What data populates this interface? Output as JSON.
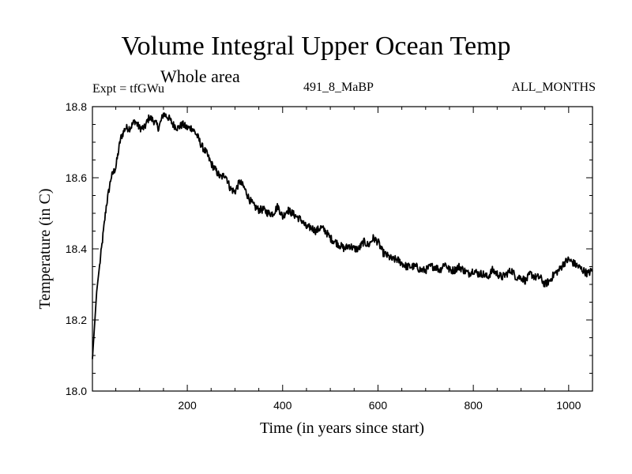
{
  "chart_data": {
    "type": "line",
    "title": "Volume Integral Upper Ocean Temp",
    "subtitle": "Whole area",
    "experiment_label": "Expt = tfGWu",
    "run_label": "491_8_MaBP",
    "months_label": "ALL_MONTHS",
    "xlabel": "Time (in years since start)",
    "ylabel": "Temperature (in C)",
    "xlim": [
      1,
      1050
    ],
    "ylim": [
      18.0,
      18.8
    ],
    "x_ticks": [
      200,
      400,
      600,
      800,
      1000
    ],
    "x_tick_labels": [
      "200",
      "400",
      "600",
      "800",
      "1000"
    ],
    "y_ticks": [
      18.0,
      18.2,
      18.4,
      18.6,
      18.8
    ],
    "y_tick_labels": [
      "18.0",
      "18.2",
      "18.4",
      "18.6",
      "18.8"
    ],
    "series": [
      {
        "name": "tfGWu",
        "x": [
          1,
          10,
          20,
          30,
          40,
          50,
          60,
          70,
          80,
          90,
          100,
          110,
          120,
          130,
          140,
          150,
          160,
          170,
          180,
          190,
          200,
          210,
          220,
          230,
          240,
          250,
          260,
          270,
          280,
          290,
          300,
          310,
          320,
          330,
          340,
          350,
          360,
          370,
          380,
          390,
          400,
          410,
          420,
          430,
          440,
          450,
          460,
          470,
          480,
          490,
          500,
          510,
          520,
          530,
          540,
          550,
          560,
          570,
          580,
          590,
          600,
          610,
          620,
          630,
          640,
          650,
          660,
          670,
          680,
          690,
          700,
          710,
          720,
          730,
          740,
          750,
          760,
          770,
          780,
          790,
          800,
          810,
          820,
          830,
          840,
          850,
          860,
          870,
          880,
          890,
          900,
          910,
          920,
          930,
          940,
          950,
          960,
          970,
          980,
          990,
          1000,
          1010,
          1020,
          1030,
          1040,
          1050
        ],
        "y": [
          18.09,
          18.28,
          18.4,
          18.52,
          18.6,
          18.63,
          18.71,
          18.74,
          18.74,
          18.76,
          18.74,
          18.74,
          18.77,
          18.76,
          18.74,
          18.78,
          18.77,
          18.75,
          18.74,
          18.75,
          18.74,
          18.74,
          18.72,
          18.69,
          18.67,
          18.64,
          18.62,
          18.6,
          18.61,
          18.57,
          18.56,
          18.59,
          18.57,
          18.54,
          18.52,
          18.51,
          18.51,
          18.5,
          18.5,
          18.52,
          18.49,
          18.51,
          18.5,
          18.49,
          18.48,
          18.46,
          18.46,
          18.45,
          18.46,
          18.45,
          18.43,
          18.42,
          18.41,
          18.4,
          18.41,
          18.4,
          18.4,
          18.42,
          18.41,
          18.43,
          18.42,
          18.39,
          18.38,
          18.37,
          18.37,
          18.36,
          18.35,
          18.35,
          18.35,
          18.34,
          18.34,
          18.35,
          18.35,
          18.34,
          18.36,
          18.34,
          18.34,
          18.35,
          18.34,
          18.33,
          18.34,
          18.33,
          18.33,
          18.32,
          18.34,
          18.33,
          18.32,
          18.33,
          18.34,
          18.32,
          18.32,
          18.31,
          18.33,
          18.32,
          18.32,
          18.3,
          18.31,
          18.33,
          18.34,
          18.36,
          18.37,
          18.36,
          18.35,
          18.34,
          18.33,
          18.34
        ]
      }
    ]
  }
}
